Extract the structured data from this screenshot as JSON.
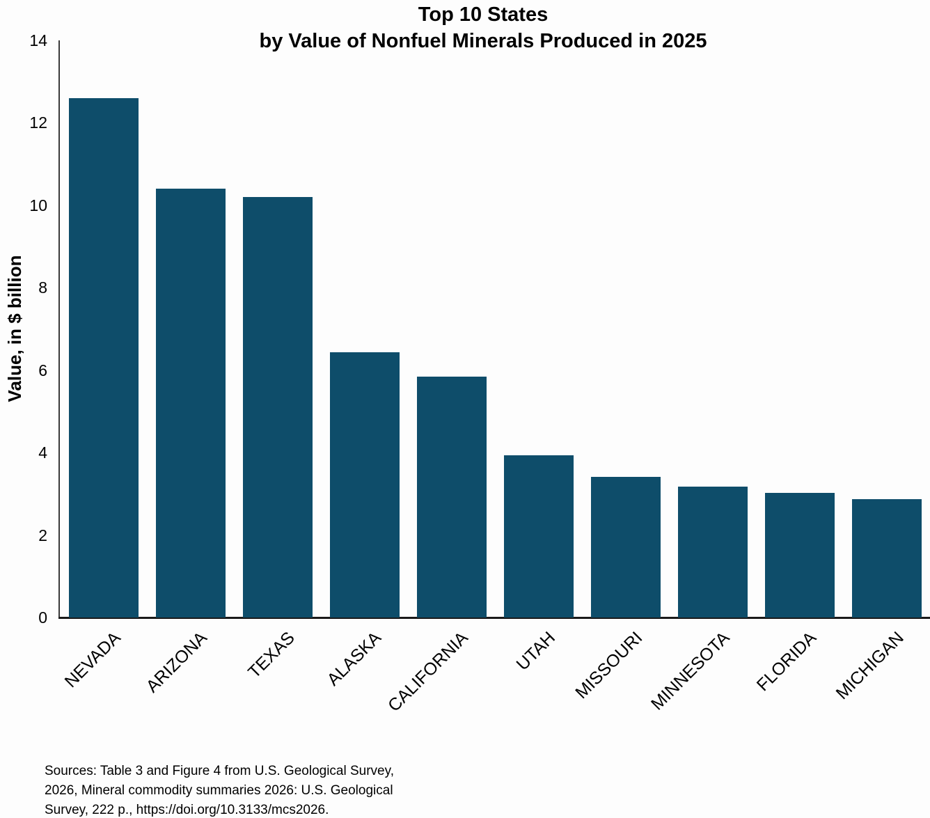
{
  "title": {
    "line1": "Top 10 States",
    "line2": "by Value of Nonfuel Minerals Produced in 2025"
  },
  "yaxis": {
    "label": "Value, in $ billion",
    "ticks": [
      0,
      2,
      4,
      6,
      8,
      10,
      12,
      14
    ],
    "max": 14
  },
  "chart_data": {
    "type": "bar",
    "title": "Top 10 States by Value of Nonfuel Minerals Produced in 2025",
    "categories": [
      "NEVADA",
      "ARIZONA",
      "TEXAS",
      "ALASKA",
      "CALIFORNIA",
      "UTAH",
      "MISSOURI",
      "MINNESOTA",
      "FLORIDA",
      "MICHIGAN"
    ],
    "values": [
      12.6,
      10.4,
      10.2,
      6.43,
      5.84,
      3.93,
      3.41,
      3.17,
      3.02,
      2.87
    ],
    "xlabel": "",
    "ylabel": "Value, in $ billion",
    "ylim": [
      0,
      14
    ],
    "grid": false,
    "legend": false,
    "bar_color": "#0e4d6a"
  },
  "source_note_lines": [
    "Sources: Table 3 and Figure 4 from U.S. Geological Survey,",
    "2026, Mineral commodity summaries 2026: U.S. Geological",
    "Survey, 222 p., https://doi.org/10.3133/mcs2026."
  ],
  "colors": {
    "bar": "#0e4d6a",
    "axis": "#2b2b2b",
    "text": "#000000",
    "background": "#fdfdfd"
  }
}
